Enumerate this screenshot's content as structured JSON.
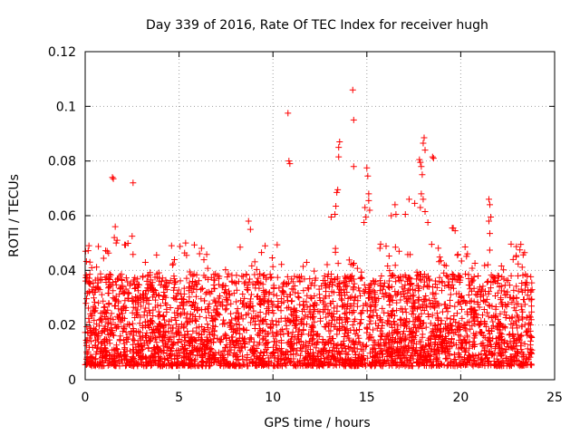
{
  "chart_data": {
    "type": "scatter",
    "title": "Day 339 of 2016, Rate Of TEC Index for receiver hugh",
    "xlabel": "GPS time / hours",
    "ylabel": "ROTI / TECUs",
    "xlim": [
      0,
      25
    ],
    "ylim": [
      0,
      0.12
    ],
    "x_ticks": [
      0,
      5,
      10,
      15,
      20,
      25
    ],
    "x_tick_labels": [
      "0",
      "5",
      "10",
      "15",
      "20",
      "25"
    ],
    "y_ticks": [
      0,
      0.02,
      0.04,
      0.06,
      0.08,
      0.1,
      0.12
    ],
    "y_tick_labels": [
      "0",
      "0.02",
      "0.04",
      "0.06",
      "0.08",
      "0.1",
      "0.12"
    ],
    "grid": true,
    "marker": "+",
    "marker_color": "#ff0000",
    "data_time_range_hours": [
      0,
      23.8
    ],
    "dense_band_range": [
      0.005,
      0.03
    ],
    "series": [
      {
        "name": "ROTI",
        "points": [
          [
            1.45,
            0.074
          ],
          [
            1.5,
            0.0735
          ],
          [
            1.6,
            0.056
          ],
          [
            1.55,
            0.052
          ],
          [
            1.7,
            0.051
          ],
          [
            1.65,
            0.05
          ],
          [
            2.55,
            0.072
          ],
          [
            2.5,
            0.0525
          ],
          [
            0.2,
            0.049
          ],
          [
            0.25,
            0.043
          ],
          [
            0.35,
            0.041
          ],
          [
            4.6,
            0.049
          ],
          [
            5.35,
            0.05
          ],
          [
            5.4,
            0.0455
          ],
          [
            8.7,
            0.058
          ],
          [
            8.8,
            0.055
          ],
          [
            10.8,
            0.0975
          ],
          [
            10.85,
            0.08
          ],
          [
            10.9,
            0.079
          ],
          [
            13.1,
            0.0595
          ],
          [
            13.3,
            0.0605
          ],
          [
            13.35,
            0.0635
          ],
          [
            13.4,
            0.0685
          ],
          [
            13.45,
            0.0695
          ],
          [
            13.5,
            0.085
          ],
          [
            13.55,
            0.087
          ],
          [
            13.5,
            0.0815
          ],
          [
            14.25,
            0.106
          ],
          [
            14.3,
            0.095
          ],
          [
            14.3,
            0.078
          ],
          [
            14.9,
            0.063
          ],
          [
            14.95,
            0.0595
          ],
          [
            15.0,
            0.0775
          ],
          [
            15.05,
            0.0745
          ],
          [
            15.1,
            0.068
          ],
          [
            15.1,
            0.0655
          ],
          [
            15.15,
            0.062
          ],
          [
            14.85,
            0.0575
          ],
          [
            16.3,
            0.06
          ],
          [
            16.5,
            0.064
          ],
          [
            16.55,
            0.0605
          ],
          [
            17.05,
            0.0605
          ],
          [
            17.25,
            0.066
          ],
          [
            17.55,
            0.0645
          ],
          [
            17.8,
            0.0805
          ],
          [
            17.85,
            0.0795
          ],
          [
            17.9,
            0.078
          ],
          [
            17.95,
            0.075
          ],
          [
            18.0,
            0.0865
          ],
          [
            18.05,
            0.0885
          ],
          [
            18.1,
            0.084
          ],
          [
            17.9,
            0.068
          ],
          [
            18.0,
            0.066
          ],
          [
            17.85,
            0.063
          ],
          [
            18.1,
            0.0615
          ],
          [
            18.5,
            0.0815
          ],
          [
            18.55,
            0.081
          ],
          [
            18.25,
            0.0575
          ],
          [
            19.55,
            0.0555
          ],
          [
            19.6,
            0.0555
          ],
          [
            19.7,
            0.0545
          ],
          [
            21.5,
            0.066
          ],
          [
            21.55,
            0.064
          ],
          [
            21.6,
            0.0595
          ],
          [
            21.5,
            0.058
          ],
          [
            21.55,
            0.0535
          ],
          [
            23.2,
            0.0495
          ],
          [
            23.15,
            0.0475
          ],
          [
            22.95,
            0.045
          ],
          [
            23.4,
            0.0465
          ]
        ]
      }
    ]
  }
}
